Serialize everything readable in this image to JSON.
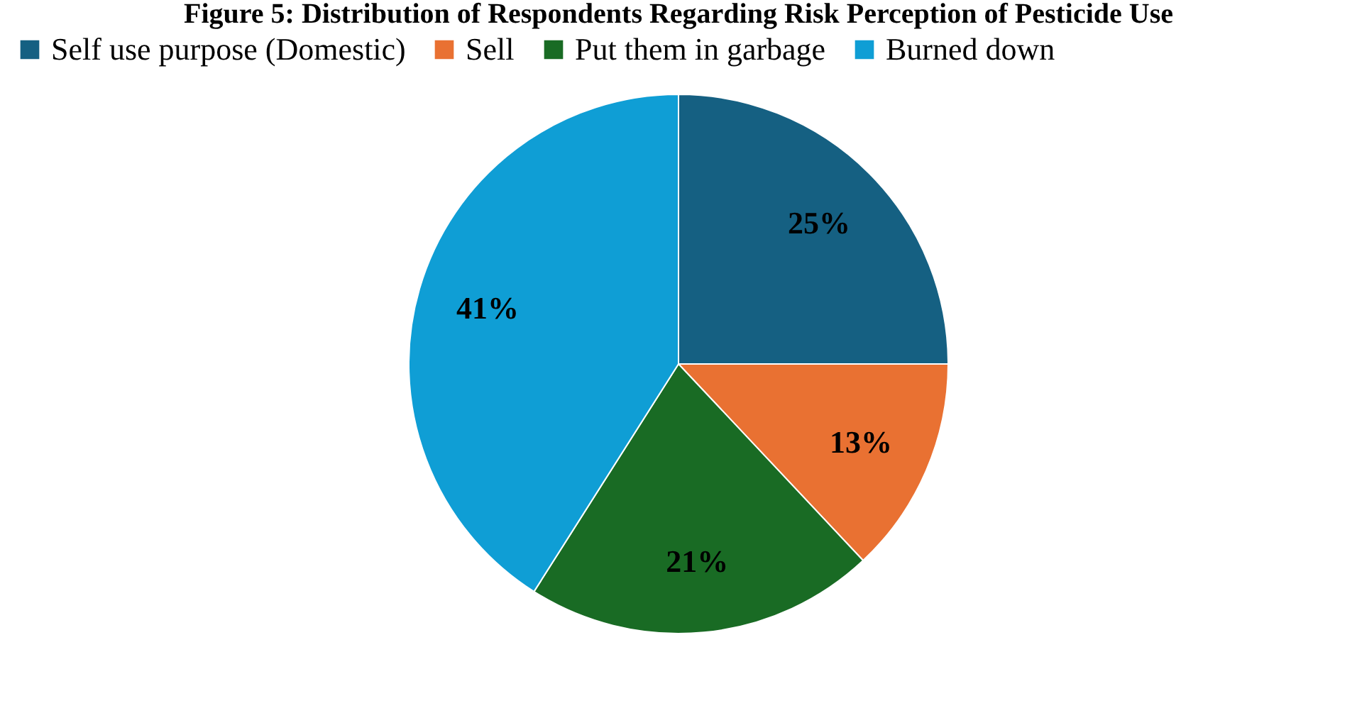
{
  "chart_data": {
    "type": "pie",
    "title": "Figure 5: Distribution of Respondents Regarding Risk Perception of Pesticide Use",
    "categories": [
      "Self use purpose (Domestic)",
      "Sell",
      "Put them in garbage",
      "Burned down"
    ],
    "values": [
      25,
      13,
      21,
      41
    ],
    "colors": [
      "#156082",
      "#e97132",
      "#196b24",
      "#0f9ed5"
    ],
    "value_labels": [
      "25%",
      "13%",
      "21%",
      "41%"
    ],
    "legend": "top"
  }
}
